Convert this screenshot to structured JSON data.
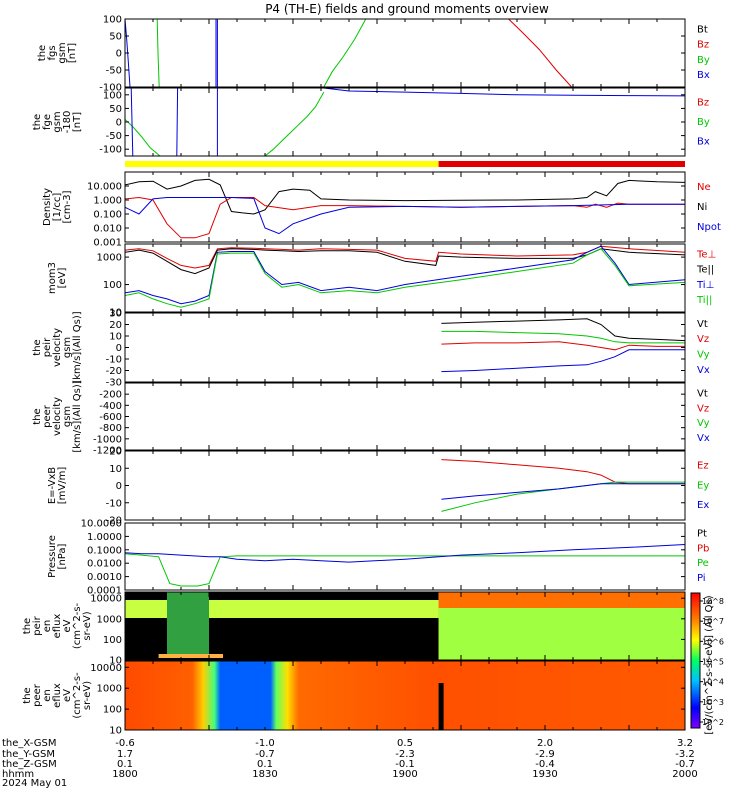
{
  "title": "P4 (TH-E) fields and ground moments overview",
  "colors": {
    "black": "#000000",
    "red": "#e00000",
    "green": "#00c800",
    "blue": "#0000e0",
    "yellow": "#ffff00"
  },
  "chart_data": [
    {
      "type": "line",
      "panel": "fgs",
      "ylabel": [
        "the",
        "fgs",
        "gsm",
        "[nT]"
      ],
      "ylim": [
        -100,
        100
      ],
      "yticks": [
        "100",
        "50",
        "0",
        "-50",
        "-100"
      ],
      "legend": [
        "Bt",
        "Bz",
        "By",
        "Bx"
      ],
      "series": [
        {
          "name": "Bx",
          "x": [
            1800,
            1800.6,
            1801.2,
            1801.8
          ],
          "y": [
            100,
            40,
            -30,
            -100
          ]
        },
        {
          "name": "By",
          "x": [
            1811.5,
            1811.8,
            1812.2
          ],
          "y": [
            100,
            0,
            -100
          ]
        },
        {
          "name": "Bx",
          "x": [
            1832.5,
            1832.5,
            1833.0,
            1833.0
          ],
          "y": [
            -100,
            100,
            100,
            -100
          ]
        },
        {
          "name": "By",
          "x": [
            1871,
            1874,
            1878,
            1882,
            1886
          ],
          "y": [
            -100,
            -55,
            -10,
            40,
            100
          ]
        },
        {
          "name": "Bz",
          "x": [
            1937,
            1942,
            1948,
            1954,
            1959.5
          ],
          "y": [
            100,
            60,
            10,
            -50,
            -100
          ]
        }
      ]
    },
    {
      "type": "line",
      "panel": "fge",
      "ylabel": [
        "the",
        "fge",
        "gsm",
        "-180",
        "[nT]"
      ],
      "ylim": [
        -125,
        125
      ],
      "yticks": [
        "100",
        "50",
        "0",
        "-50",
        "-100"
      ],
      "legend": [
        "Bz",
        "By",
        "Bx"
      ],
      "series": [
        {
          "name": "By",
          "x": [
            1800,
            1803,
            1806,
            1809,
            1812.5
          ],
          "y": [
            10,
            -20,
            -55,
            -95,
            -125
          ]
        },
        {
          "name": "Bx",
          "x": [
            1802.2,
            1802.5,
            1802.8
          ],
          "y": [
            125,
            0,
            -125
          ]
        },
        {
          "name": "Bx",
          "x": [
            1818.5,
            1818.8
          ],
          "y": [
            -125,
            125
          ]
        },
        {
          "name": "Bx",
          "x": [
            1833.0,
            1833.0
          ],
          "y": [
            -125,
            125
          ]
        },
        {
          "name": "By",
          "x": [
            1850,
            1853,
            1856,
            1859,
            1862,
            1865,
            1868,
            1871
          ],
          "y": [
            -125,
            -100,
            -70,
            -40,
            -10,
            20,
            55,
            110
          ]
        },
        {
          "name": "Bx",
          "x": [
            1871,
            1880,
            1900,
            1920,
            1940,
            1960,
            1980,
            2000
          ],
          "y": [
            125,
            114,
            110,
            105,
            100,
            98,
            97,
            96
          ]
        }
      ]
    },
    {
      "type": "bar",
      "panel": "mode",
      "segments": [
        {
          "from": 1800,
          "to": 1912,
          "color": "yellow"
        },
        {
          "from": 1912,
          "to": 2000,
          "color": "red"
        }
      ]
    },
    {
      "type": "line",
      "panel": "density",
      "ylabel": [
        "Density",
        "[1/cc]",
        "[cm-3]"
      ],
      "scale": "log",
      "ylim": [
        0.001,
        100
      ],
      "yticks": [
        "10.000",
        "1.000",
        "0.100",
        "0.010",
        "0.001"
      ],
      "legend": [
        "Ne",
        "Ni",
        "Npot"
      ],
      "series": [
        {
          "name": "Ni",
          "x": [
            1800,
            1805,
            1810,
            1815,
            1820,
            1825,
            1830,
            1834,
            1838,
            1842,
            1846,
            1850,
            1855,
            1860,
            1866,
            1870,
            1880,
            1900,
            1920,
            1940,
            1960,
            1965,
            1968,
            1972,
            1976,
            1980,
            1990,
            2000
          ],
          "y": [
            12,
            20,
            22,
            6,
            10,
            25,
            30,
            12,
            0.15,
            0.12,
            0.1,
            0.2,
            4,
            6,
            5,
            1.2,
            1,
            0.9,
            0.95,
            1,
            1.2,
            1.5,
            4,
            2,
            15,
            25,
            20,
            18
          ]
        },
        {
          "name": "Ne",
          "x": [
            1800,
            1805,
            1810,
            1815,
            1820,
            1825,
            1830,
            1834,
            1838,
            1842,
            1846,
            1850,
            1860,
            1870,
            1880,
            1900,
            1920,
            1940,
            1960,
            1965,
            1968,
            1972,
            1976,
            1980,
            2000
          ],
          "y": [
            1.2,
            1.5,
            1,
            0.02,
            0.002,
            0.002,
            0.004,
            0.5,
            1.5,
            1.5,
            1.5,
            0.4,
            0.2,
            0.4,
            0.4,
            0.35,
            0.3,
            0.35,
            0.4,
            0.3,
            0.5,
            0.3,
            0.6,
            0.5,
            0.5
          ]
        },
        {
          "name": "Npot",
          "x": [
            1800,
            1805,
            1810,
            1815,
            1820,
            1830,
            1838,
            1842,
            1846,
            1850,
            1855,
            1860,
            1870,
            1880,
            1900,
            1920,
            1940,
            1960,
            1980,
            2000
          ],
          "y": [
            0.3,
            0.1,
            1.2,
            1.5,
            1.5,
            1.5,
            1.5,
            1.4,
            1.3,
            0.01,
            0.004,
            0.02,
            0.1,
            0.3,
            0.35,
            0.3,
            0.35,
            0.4,
            0.5,
            0.5
          ]
        }
      ]
    },
    {
      "type": "line",
      "panel": "temperature",
      "ylabel": [
        "mom3",
        "[eV]"
      ],
      "scale": "log",
      "ylim": [
        10,
        3000
      ],
      "yticks": [
        "1000",
        "100",
        "10"
      ],
      "legend": [
        "Te⊥",
        "Te||",
        "Ti⊥",
        "Ti||"
      ],
      "series": [
        {
          "name": "Te⊥",
          "x": [
            1800,
            1805,
            1810,
            1815,
            1820,
            1825,
            1830,
            1833,
            1838,
            1846,
            1850,
            1856,
            1862,
            1870,
            1880,
            1890,
            1900,
            1911,
            1912,
            1920,
            1940,
            1960,
            1965,
            1970,
            1980,
            2000
          ],
          "y": [
            1800,
            2000,
            1700,
            900,
            500,
            400,
            500,
            2000,
            2200,
            2100,
            2000,
            1900,
            1800,
            2000,
            1900,
            1800,
            900,
            700,
            1500,
            1300,
            1100,
            1200,
            1500,
            2500,
            2000,
            1500
          ]
        },
        {
          "name": "Te||",
          "x": [
            1800,
            1805,
            1810,
            1815,
            1820,
            1825,
            1830,
            1833,
            1838,
            1846,
            1850,
            1856,
            1862,
            1870,
            1880,
            1890,
            1900,
            1911,
            1912,
            1920,
            1940,
            1960,
            1965,
            1970,
            1980,
            2000
          ],
          "y": [
            1500,
            1800,
            1400,
            700,
            350,
            250,
            400,
            1800,
            2000,
            1900,
            1800,
            1700,
            1600,
            1700,
            1700,
            1500,
            700,
            500,
            1100,
            1000,
            900,
            900,
            1200,
            2000,
            1500,
            1200
          ]
        },
        {
          "name": "Ti⊥",
          "x": [
            1800,
            1805,
            1810,
            1815,
            1820,
            1825,
            1830,
            1833,
            1838,
            1846,
            1850,
            1856,
            1862,
            1870,
            1880,
            1890,
            1900,
            1920,
            1940,
            1960,
            1965,
            1970,
            1975,
            1980,
            2000
          ],
          "y": [
            50,
            60,
            40,
            30,
            20,
            25,
            40,
            1500,
            1600,
            1600,
            300,
            100,
            120,
            60,
            80,
            60,
            100,
            200,
            400,
            800,
            1500,
            2500,
            600,
            100,
            150
          ]
        },
        {
          "name": "Ti||",
          "x": [
            1800,
            1805,
            1810,
            1815,
            1820,
            1825,
            1830,
            1833,
            1838,
            1846,
            1850,
            1856,
            1862,
            1870,
            1880,
            1890,
            1900,
            1920,
            1940,
            1960,
            1965,
            1970,
            1975,
            1980,
            2000
          ],
          "y": [
            40,
            50,
            30,
            20,
            15,
            20,
            30,
            1300,
            1400,
            1400,
            250,
            80,
            100,
            50,
            60,
            50,
            80,
            150,
            300,
            600,
            1200,
            2000,
            500,
            90,
            120
          ]
        }
      ]
    },
    {
      "type": "line",
      "panel": "peir_velocity",
      "ylabel": [
        "the",
        "peir",
        "velocity",
        "gsm",
        "[km/s](All Qs)]"
      ],
      "ylim": [
        -30,
        30
      ],
      "yticks": [
        "30",
        "20",
        "10",
        "0",
        "-10",
        "-20",
        "-30"
      ],
      "legend": [
        "Vt",
        "Vz",
        "Vy",
        "Vx"
      ],
      "series": [
        {
          "name": "Vt",
          "x": [
            1913,
            1925,
            1940,
            1955,
            1965,
            1970,
            1975,
            1980,
            1990,
            2000
          ],
          "y": [
            21,
            22,
            23,
            24,
            25,
            20,
            10,
            8,
            7,
            6
          ]
        },
        {
          "name": "Vy",
          "x": [
            1913,
            1925,
            1940,
            1955,
            1965,
            1970,
            1975,
            1980,
            1990,
            2000
          ],
          "y": [
            14,
            14,
            13,
            12,
            10,
            8,
            5,
            4,
            4,
            4
          ]
        },
        {
          "name": "Vz",
          "x": [
            1913,
            1925,
            1940,
            1955,
            1965,
            1970,
            1975,
            1980,
            1990,
            2000
          ],
          "y": [
            3,
            4,
            4,
            5,
            2,
            0,
            -2,
            2,
            1,
            1
          ]
        },
        {
          "name": "Vx",
          "x": [
            1913,
            1925,
            1940,
            1955,
            1965,
            1970,
            1975,
            1980,
            1990,
            2000
          ],
          "y": [
            -21,
            -20,
            -18,
            -16,
            -15,
            -12,
            -8,
            -2,
            -2,
            -2
          ]
        }
      ]
    },
    {
      "type": "line",
      "panel": "peer_velocity",
      "ylabel": [
        "the",
        "peer",
        "velocity",
        "gsm",
        "[km/s](All Qs)]"
      ],
      "ylim": [
        -1200,
        0
      ],
      "yticks": [
        "-200",
        "-400",
        "-600",
        "-800",
        "-1000",
        "-1200"
      ],
      "legend": [
        "Vt",
        "Vz",
        "Vy",
        "Vx"
      ],
      "series": []
    },
    {
      "type": "line",
      "panel": "efield",
      "ylabel": [
        "E=-VxB",
        "[mV/m]"
      ],
      "ylim": [
        -20,
        20
      ],
      "yticks": [
        "20",
        "10",
        "0",
        "-10",
        "-20"
      ],
      "legend": [
        "Ez",
        "Ey",
        "Ex"
      ],
      "series": [
        {
          "name": "Ez",
          "x": [
            1913,
            1925,
            1940,
            1955,
            1965,
            1970,
            1975,
            1980,
            1990,
            2000
          ],
          "y": [
            15,
            14,
            12,
            10,
            8,
            6,
            2,
            1,
            1,
            1
          ]
        },
        {
          "name": "Ey",
          "x": [
            1913,
            1925,
            1940,
            1955,
            1965,
            1970,
            1975,
            1980,
            1990,
            2000
          ],
          "y": [
            -15,
            -10,
            -5,
            -2,
            0,
            1,
            2,
            2,
            2,
            2
          ]
        },
        {
          "name": "Ex",
          "x": [
            1913,
            1925,
            1940,
            1955,
            1965,
            1970,
            1975,
            1980,
            1990,
            2000
          ],
          "y": [
            -8,
            -6,
            -4,
            -2,
            0,
            1,
            1,
            1,
            1,
            1
          ]
        }
      ]
    },
    {
      "type": "line",
      "panel": "pressure",
      "ylabel": [
        "Pressure",
        "[nPa]"
      ],
      "scale": "log",
      "ylim": [
        0.0001,
        10
      ],
      "yticks": [
        "10.0000",
        "1.0000",
        "0.1000",
        "0.0100",
        "0.0010",
        "0.0001"
      ],
      "legend": [
        "Pt",
        "Pb",
        "Pe",
        "Pi"
      ],
      "series": [
        {
          "name": "Pe",
          "x": [
            1800,
            1806,
            1812,
            1816,
            1820,
            1826,
            1830,
            1834,
            1840,
            1860,
            1880,
            1900,
            1940,
            2000
          ],
          "y": [
            0.05,
            0.04,
            0.03,
            0.0003,
            0.0002,
            0.0002,
            0.0003,
            0.03,
            0.035,
            0.035,
            0.035,
            0.035,
            0.035,
            0.035
          ]
        },
        {
          "name": "Pi",
          "x": [
            1800,
            1806,
            1812,
            1820,
            1830,
            1834,
            1840,
            1850,
            1860,
            1870,
            1880,
            1900,
            1920,
            1940,
            1960,
            1980,
            2000
          ],
          "y": [
            0.06,
            0.05,
            0.05,
            0.04,
            0.03,
            0.03,
            0.02,
            0.015,
            0.02,
            0.015,
            0.012,
            0.02,
            0.04,
            0.06,
            0.1,
            0.15,
            0.25
          ]
        }
      ]
    },
    {
      "type": "heatmap",
      "panel": "peir_spectrogram",
      "ylabel": [
        "the",
        "peir",
        "en",
        "eflux",
        "eV",
        "(cm^2-s-",
        "sr-eV)"
      ],
      "scale": "log",
      "ylim": [
        10,
        20000
      ],
      "yticks": [
        "10000",
        "1000",
        "100",
        "10"
      ]
    },
    {
      "type": "heatmap",
      "panel": "peer_spectrogram",
      "ylabel": [
        "the",
        "peer",
        "en",
        "eflux",
        "eV",
        "(cm^2-s-",
        "sr-eV)"
      ],
      "scale": "log",
      "ylim": [
        10,
        20000
      ],
      "yticks": [
        "10000",
        "1000",
        "100",
        "10"
      ]
    }
  ],
  "colorbar": {
    "ticks": [
      "10^8",
      "10^7",
      "10^6",
      "10^5",
      "10^4",
      "10^3",
      "10^2"
    ],
    "label": "[eV/(cm^2-s-sr-eV)] (All Qs)"
  },
  "x_axis": {
    "range": [
      1800,
      2000
    ],
    "row_labels": [
      "the_X-GSM",
      "the_Y-GSM",
      "the_Z-GSM",
      "hhmm",
      "2024 May 01"
    ],
    "ticks": [
      {
        "hhmm": "1800",
        "x": "-0.6",
        "y": "1.7",
        "z": "0.1"
      },
      {
        "hhmm": "1830",
        "x": "-1.0",
        "y": "-0.7",
        "z": "0.1"
      },
      {
        "hhmm": "1900",
        "x": "0.5",
        "y": "-2.3",
        "z": "-0.1"
      },
      {
        "hhmm": "1930",
        "x": "2.0",
        "y": "-2.9",
        "z": "-0.4"
      },
      {
        "hhmm": "2000",
        "x": "3.2",
        "y": "-3.2",
        "z": "-0.7"
      }
    ]
  }
}
